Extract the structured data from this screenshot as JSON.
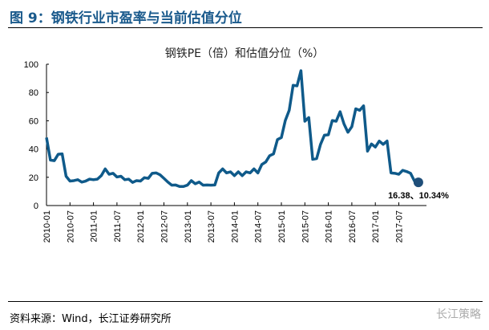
{
  "figure_title": "图 9：钢铁行业市盈率与当前估值分位",
  "source": "资料来源：Wind，长江证券研究所",
  "watermark": "长江策略",
  "chart_data": {
    "type": "line",
    "title": "钢铁PE（倍）和估值分位（%）",
    "ylim": [
      0,
      100
    ],
    "yticks": [
      0,
      20,
      40,
      60,
      80,
      100
    ],
    "xticks": [
      "2010-01",
      "2010-07",
      "2011-01",
      "2011-07",
      "2012-01",
      "2012-07",
      "2013-01",
      "2013-07",
      "2014-01",
      "2014-07",
      "2015-01",
      "2015-07",
      "2016-01",
      "2016-07",
      "2017-01",
      "2017-07"
    ],
    "color": "#0f5a8a",
    "marker_color": "#1f4e79",
    "annotation": "16.38、10.34%",
    "series": [
      {
        "x_start": "2010-01",
        "frequency": "monthly",
        "values": [
          50,
          31,
          33,
          35,
          38,
          20,
          18,
          17,
          19,
          16,
          18,
          18,
          19,
          18,
          22,
          25,
          23,
          22,
          21,
          20,
          19,
          18,
          17,
          17,
          18,
          19,
          20,
          22,
          24,
          21,
          20,
          16,
          15,
          14,
          14,
          13,
          15,
          17,
          16,
          16,
          15,
          14,
          15,
          14,
          24,
          25,
          24,
          23,
          22,
          23,
          22,
          23,
          24,
          25,
          24,
          28,
          32,
          34,
          38,
          45,
          50,
          58,
          70,
          82,
          88,
          92,
          62,
          60,
          34,
          32,
          45,
          48,
          52,
          58,
          62,
          64,
          60,
          50,
          58,
          66,
          70,
          68,
          40,
          42,
          43,
          44,
          45,
          44,
          24,
          22,
          23,
          24,
          25,
          22,
          18,
          16.38
        ]
      }
    ]
  }
}
